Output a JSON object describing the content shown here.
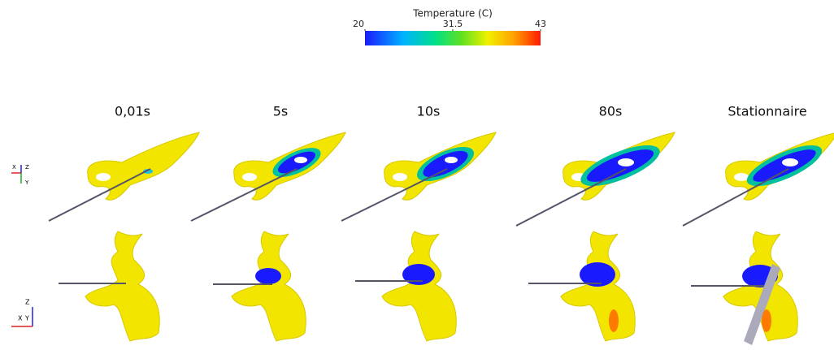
{
  "colorbar": {
    "title": "Temperature (C)",
    "range": [
      20,
      43
    ],
    "ticks": [
      20,
      31.5,
      43
    ]
  },
  "columns": [
    "0,01s",
    "5s",
    "10s",
    "80s",
    "Stationnaire"
  ],
  "triads": [
    {
      "labels": [
        "X",
        "Z",
        "Y"
      ]
    },
    {
      "labels": [
        "Z",
        "X",
        "Y"
      ]
    }
  ]
}
